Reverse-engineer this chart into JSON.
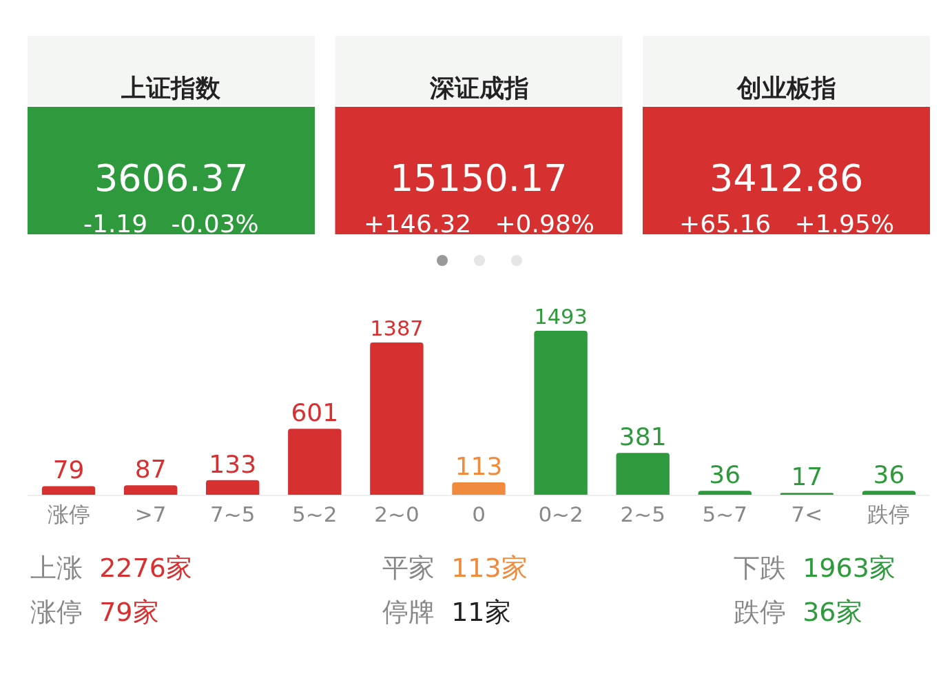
{
  "chart_data": [
    {
      "type": "other",
      "title": "上证指数",
      "annotations": [
        "3606.37",
        "-1.19",
        "-0.03%"
      ],
      "color": "#2e9a3d"
    },
    {
      "type": "other",
      "title": "深证成指",
      "annotations": [
        "15150.17",
        "+146.32",
        "+0.98%"
      ],
      "color": "#d63031"
    },
    {
      "type": "other",
      "title": "创业板指",
      "annotations": [
        "3412.86",
        "+65.16",
        "+1.95%"
      ],
      "color": "#d63031"
    },
    {
      "type": "bar",
      "categories": [
        "涨停",
        ">7",
        "7~5",
        "5~2",
        "2~0",
        "0",
        "0~2",
        "2~5",
        "5~7",
        "7<",
        "跌停"
      ],
      "values": [
        79,
        87,
        133,
        601,
        1387,
        113,
        1493,
        381,
        36,
        17,
        36
      ],
      "colors": [
        "#d63031",
        "#d63031",
        "#d63031",
        "#d63031",
        "#d63031",
        "#f08a3c",
        "#2e9a3d",
        "#2e9a3d",
        "#2e9a3d",
        "#2e9a3d",
        "#2e9a3d"
      ],
      "data_labels": true
    },
    {
      "type": "other",
      "categories": [
        "上涨",
        "涨停",
        "平家",
        "停牌",
        "下跌",
        "跌停"
      ],
      "value_labels": [
        "2276家",
        "79家",
        "113家",
        "11家",
        "1963家",
        "36家"
      ],
      "colors": [
        "#d63031",
        "#d63031",
        "#f08a3c",
        "#222222",
        "#2e9a3d",
        "#2e9a3d"
      ]
    }
  ]
}
